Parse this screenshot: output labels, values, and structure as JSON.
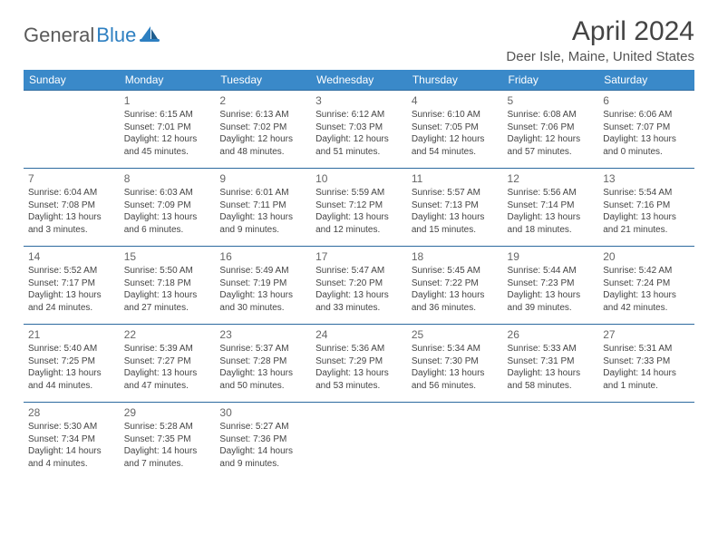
{
  "brand": {
    "part1": "General",
    "part2": "Blue"
  },
  "title": "April 2024",
  "location": "Deer Isle, Maine, United States",
  "colors": {
    "header_bg": "#3a89c9",
    "header_text": "#ffffff",
    "row_border": "#2d6a9f",
    "brand_gray": "#5a5a5a",
    "brand_blue": "#2d7fc1",
    "body_text": "#444444"
  },
  "weekdays": [
    "Sunday",
    "Monday",
    "Tuesday",
    "Wednesday",
    "Thursday",
    "Friday",
    "Saturday"
  ],
  "first_weekday_index": 1,
  "days": [
    {
      "n": 1,
      "sr": "6:15 AM",
      "ss": "7:01 PM",
      "dl": "12 hours and 45 minutes."
    },
    {
      "n": 2,
      "sr": "6:13 AM",
      "ss": "7:02 PM",
      "dl": "12 hours and 48 minutes."
    },
    {
      "n": 3,
      "sr": "6:12 AM",
      "ss": "7:03 PM",
      "dl": "12 hours and 51 minutes."
    },
    {
      "n": 4,
      "sr": "6:10 AM",
      "ss": "7:05 PM",
      "dl": "12 hours and 54 minutes."
    },
    {
      "n": 5,
      "sr": "6:08 AM",
      "ss": "7:06 PM",
      "dl": "12 hours and 57 minutes."
    },
    {
      "n": 6,
      "sr": "6:06 AM",
      "ss": "7:07 PM",
      "dl": "13 hours and 0 minutes."
    },
    {
      "n": 7,
      "sr": "6:04 AM",
      "ss": "7:08 PM",
      "dl": "13 hours and 3 minutes."
    },
    {
      "n": 8,
      "sr": "6:03 AM",
      "ss": "7:09 PM",
      "dl": "13 hours and 6 minutes."
    },
    {
      "n": 9,
      "sr": "6:01 AM",
      "ss": "7:11 PM",
      "dl": "13 hours and 9 minutes."
    },
    {
      "n": 10,
      "sr": "5:59 AM",
      "ss": "7:12 PM",
      "dl": "13 hours and 12 minutes."
    },
    {
      "n": 11,
      "sr": "5:57 AM",
      "ss": "7:13 PM",
      "dl": "13 hours and 15 minutes."
    },
    {
      "n": 12,
      "sr": "5:56 AM",
      "ss": "7:14 PM",
      "dl": "13 hours and 18 minutes."
    },
    {
      "n": 13,
      "sr": "5:54 AM",
      "ss": "7:16 PM",
      "dl": "13 hours and 21 minutes."
    },
    {
      "n": 14,
      "sr": "5:52 AM",
      "ss": "7:17 PM",
      "dl": "13 hours and 24 minutes."
    },
    {
      "n": 15,
      "sr": "5:50 AM",
      "ss": "7:18 PM",
      "dl": "13 hours and 27 minutes."
    },
    {
      "n": 16,
      "sr": "5:49 AM",
      "ss": "7:19 PM",
      "dl": "13 hours and 30 minutes."
    },
    {
      "n": 17,
      "sr": "5:47 AM",
      "ss": "7:20 PM",
      "dl": "13 hours and 33 minutes."
    },
    {
      "n": 18,
      "sr": "5:45 AM",
      "ss": "7:22 PM",
      "dl": "13 hours and 36 minutes."
    },
    {
      "n": 19,
      "sr": "5:44 AM",
      "ss": "7:23 PM",
      "dl": "13 hours and 39 minutes."
    },
    {
      "n": 20,
      "sr": "5:42 AM",
      "ss": "7:24 PM",
      "dl": "13 hours and 42 minutes."
    },
    {
      "n": 21,
      "sr": "5:40 AM",
      "ss": "7:25 PM",
      "dl": "13 hours and 44 minutes."
    },
    {
      "n": 22,
      "sr": "5:39 AM",
      "ss": "7:27 PM",
      "dl": "13 hours and 47 minutes."
    },
    {
      "n": 23,
      "sr": "5:37 AM",
      "ss": "7:28 PM",
      "dl": "13 hours and 50 minutes."
    },
    {
      "n": 24,
      "sr": "5:36 AM",
      "ss": "7:29 PM",
      "dl": "13 hours and 53 minutes."
    },
    {
      "n": 25,
      "sr": "5:34 AM",
      "ss": "7:30 PM",
      "dl": "13 hours and 56 minutes."
    },
    {
      "n": 26,
      "sr": "5:33 AM",
      "ss": "7:31 PM",
      "dl": "13 hours and 58 minutes."
    },
    {
      "n": 27,
      "sr": "5:31 AM",
      "ss": "7:33 PM",
      "dl": "14 hours and 1 minute."
    },
    {
      "n": 28,
      "sr": "5:30 AM",
      "ss": "7:34 PM",
      "dl": "14 hours and 4 minutes."
    },
    {
      "n": 29,
      "sr": "5:28 AM",
      "ss": "7:35 PM",
      "dl": "14 hours and 7 minutes."
    },
    {
      "n": 30,
      "sr": "5:27 AM",
      "ss": "7:36 PM",
      "dl": "14 hours and 9 minutes."
    }
  ],
  "labels": {
    "sunrise": "Sunrise:",
    "sunset": "Sunset:",
    "daylight": "Daylight:"
  }
}
